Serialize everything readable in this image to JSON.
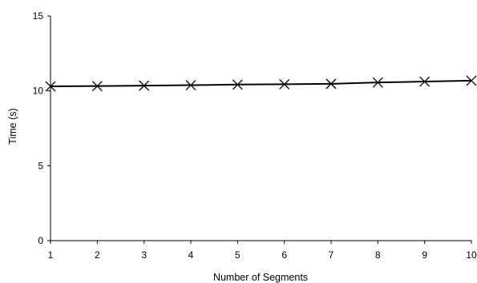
{
  "chart_data": {
    "type": "line",
    "title": "",
    "xlabel": "Number of Segments",
    "ylabel": "Time (s)",
    "x": [
      1,
      2,
      3,
      4,
      5,
      6,
      7,
      8,
      9,
      10
    ],
    "xticks": [
      "1",
      "2",
      "3",
      "4",
      "5",
      "6",
      "7",
      "8",
      "9",
      "10"
    ],
    "yticks": [
      0,
      5,
      10,
      15
    ],
    "ylim": [
      0,
      15
    ],
    "xlim": [
      1,
      10
    ],
    "grid": false,
    "legend": "none",
    "series": [
      {
        "marker": "x",
        "color": "#000000",
        "values": [
          10.3,
          10.32,
          10.35,
          10.38,
          10.42,
          10.44,
          10.47,
          10.56,
          10.62,
          10.68
        ]
      }
    ]
  }
}
